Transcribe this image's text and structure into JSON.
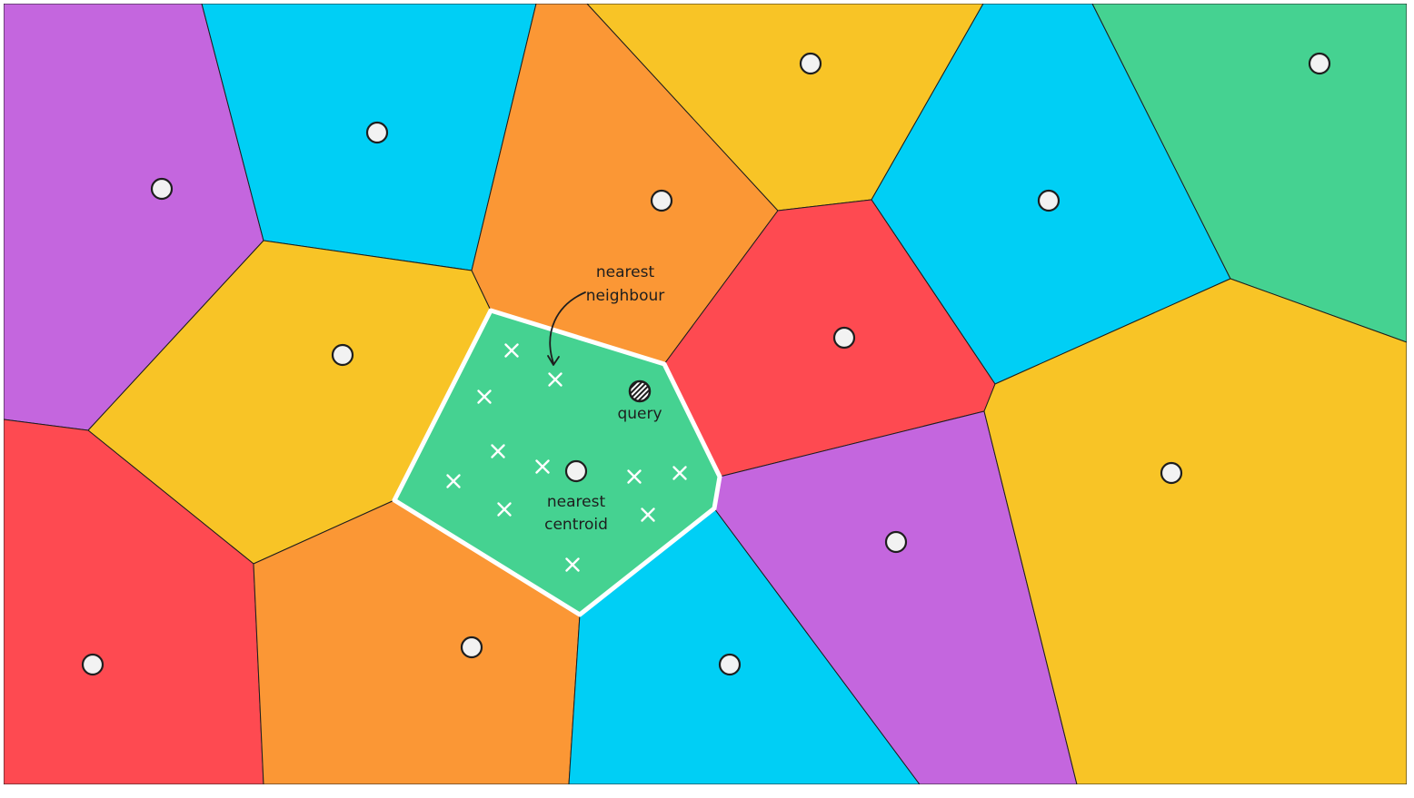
{
  "colors": {
    "purple": "#c466de",
    "cyan": "#00cff5",
    "orange": "#fb9735",
    "yellow": "#f8c426",
    "green": "#45d291",
    "red": "#fe4a51",
    "centroid_fill": "#f2f2f2",
    "outline": "#1e1e1e",
    "highlight_border": "#ffffff"
  },
  "labels": {
    "nearest_neighbour_line1": "nearest",
    "nearest_neighbour_line2": "neighbour",
    "query": "query",
    "nearest_centroid_line1": "nearest",
    "nearest_centroid_line2": "centroid"
  },
  "icons": {
    "centroid": "white-circle",
    "vector": "white-cross",
    "query": "hatched-circle",
    "pointer": "curved-arrow"
  }
}
